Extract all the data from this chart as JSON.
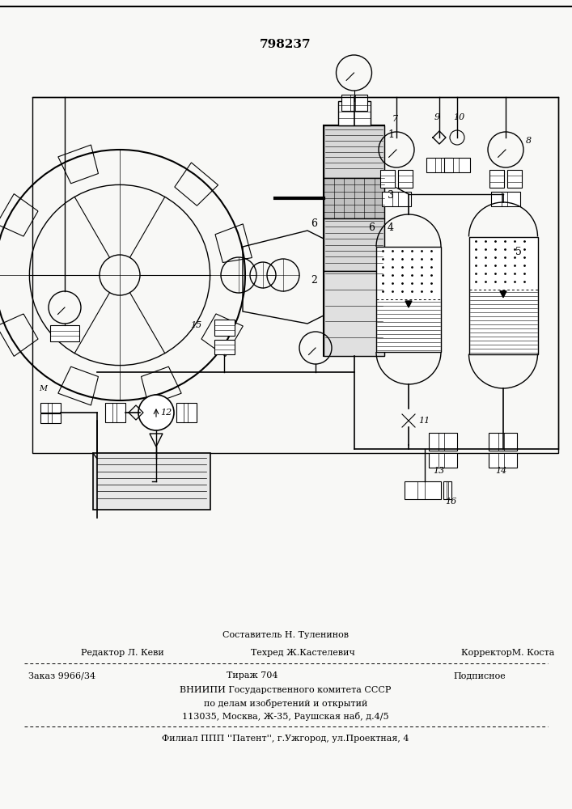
{
  "patent_number": "798237",
  "bg_color": "#f8f8f6",
  "footer": {
    "sestavitel": "Составитель Н. Туленинов",
    "redaktor": "Редактор Л. Кеви",
    "tehred": "Техред Ж.Кастелевич",
    "korrektor": "КорректорМ. Коста",
    "zakaz": "Заказ 9966/34",
    "tirazh": "Тираж 704",
    "podpisnoe": "Подписное",
    "vniipи": "ВНИИПИ Государственного комитета СССР",
    "po_delam": "по делам изобретений и открытий",
    "address": "113035, Москва, Ж-35, Раушская наб, д.4/5",
    "filial": "Филиал ППП ''Патент'', г.Ужгород, ул.Проектная, 4"
  }
}
